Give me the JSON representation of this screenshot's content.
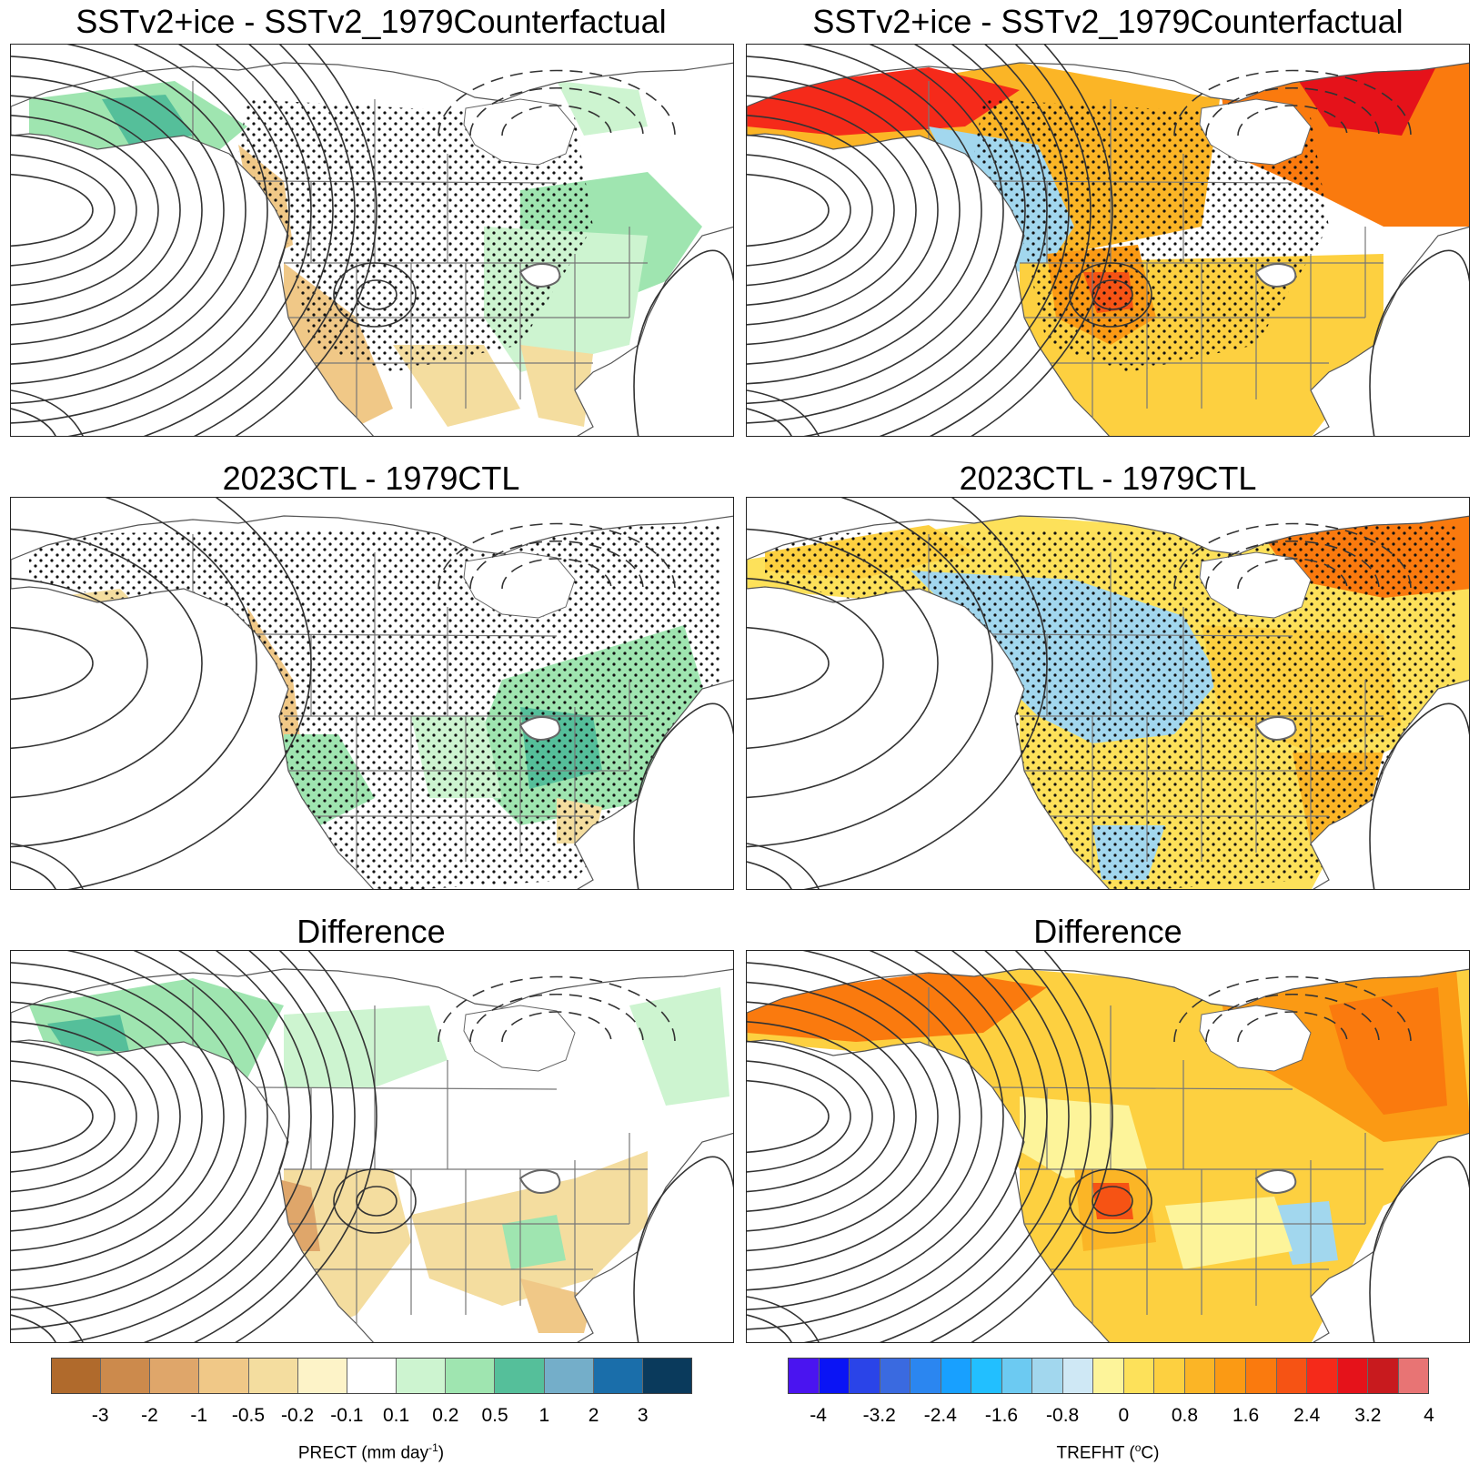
{
  "panels": {
    "p1": {
      "title": "SSTv2+ice - SSTv2_1979Counterfactual"
    },
    "p2": {
      "title": "SSTv2+ice - SSTv2_1979Counterfactual"
    },
    "p3": {
      "title": "2023CTL - 1979CTL"
    },
    "p4": {
      "title": "2023CTL - 1979CTL"
    },
    "p5": {
      "title": "Difference"
    },
    "p6": {
      "title": "Difference"
    }
  },
  "colorbars": {
    "precip": {
      "label": "PRECT (mm day",
      "label_sup": "-1",
      "label_end": ")",
      "ticks": [
        "-3",
        "-2",
        "-1",
        "-0.5",
        "-0.2",
        "-0.1",
        "0.1",
        "0.2",
        "0.5",
        "1",
        "2",
        "3"
      ],
      "colors": [
        "#b06a2c",
        "#cc8a4c",
        "#dfa66a",
        "#f0c887",
        "#f4dd9f",
        "#fdf3c8",
        "#ffffff",
        "#cdf4d0",
        "#9fe5b0",
        "#55bf9a",
        "#74aec9",
        "#1a6eaa",
        "#0a3a5c"
      ]
    },
    "temp": {
      "label": "TREFHT (",
      "label_sup": "o",
      "label_end": "C)",
      "ticks": [
        "-4",
        "-3.2",
        "-2.4",
        "-1.6",
        "-0.8",
        "0",
        "0.8",
        "1.6",
        "2.4",
        "3.2",
        "4"
      ],
      "colors": [
        "#4a14f0",
        "#0a14f5",
        "#2a44e8",
        "#3a6ae0",
        "#2b86f0",
        "#18a0ff",
        "#22bfff",
        "#6ccaf2",
        "#a2d7ee",
        "#cfe8f5",
        "#fdf49a",
        "#fde15a",
        "#fdd040",
        "#fbb526",
        "#fb9a14",
        "#fa7a0e",
        "#f65314",
        "#f52a1a",
        "#e5121a",
        "#c81a1e",
        "#e87474"
      ]
    }
  }
}
